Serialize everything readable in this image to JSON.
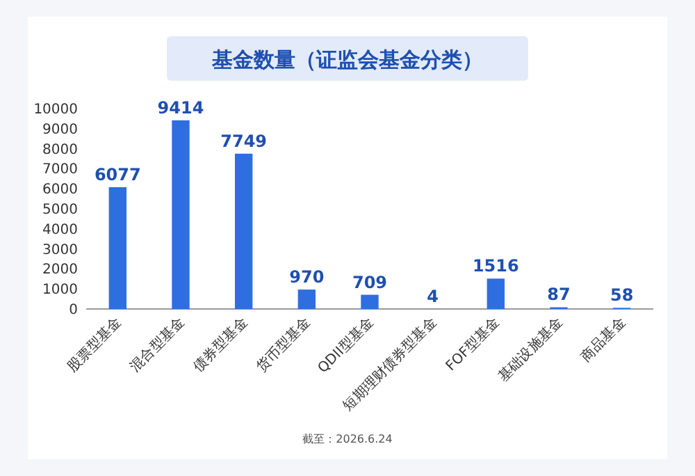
{
  "chart_data": {
    "type": "bar",
    "title": "基金数量（证监会基金分类）",
    "categories": [
      "股票型基金",
      "混合型基金",
      "债券型基金",
      "货币型基金",
      "QDII型基金",
      "短期理财债券型基金",
      "FOF型基金",
      "基础设施基金",
      "商品基金"
    ],
    "values": [
      6077,
      9414,
      7749,
      970,
      709,
      4,
      1516,
      87,
      58
    ],
    "color": "#2f6ee0",
    "data_labels": true,
    "grid": false,
    "ylim": [
      0,
      10000
    ],
    "yticks": [
      0,
      1000,
      2000,
      3000,
      4000,
      5000,
      6000,
      7000,
      8000,
      9000,
      10000
    ],
    "annotations": [
      "截至：2026.6.24"
    ]
  }
}
